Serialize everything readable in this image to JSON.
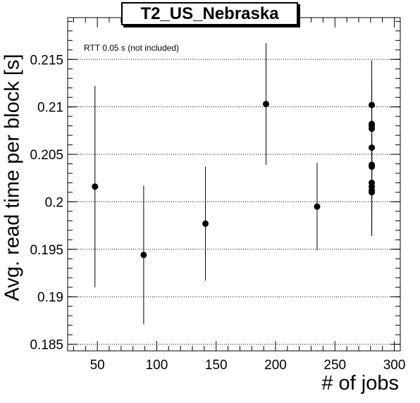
{
  "chart_data": {
    "type": "scatter",
    "title": "T2_US_Nebraska",
    "xlabel": "# of jobs",
    "ylabel": "Avg. read time per block [s]",
    "annotation": "RTT 0.05 s (not included)",
    "xlim": [
      25,
      305
    ],
    "ylim": [
      0.1843,
      0.2194
    ],
    "x_ticks": [
      50,
      100,
      150,
      200,
      250,
      300
    ],
    "x_tick_labels": [
      "50",
      "100",
      "150",
      "200",
      "250",
      "300"
    ],
    "y_ticks": [
      0.185,
      0.19,
      0.195,
      0.2,
      0.205,
      0.21,
      0.215
    ],
    "y_tick_labels": [
      "0.185",
      "0.19",
      "0.195",
      "0.2",
      "0.205",
      "0.21",
      "0.215"
    ],
    "y_grid": true,
    "points": [
      {
        "x": 48,
        "y": 0.2016,
        "err": 0.0106
      },
      {
        "x": 89,
        "y": 0.1944,
        "err": 0.0073
      },
      {
        "x": 141,
        "y": 0.1977,
        "err": 0.006
      },
      {
        "x": 192,
        "y": 0.2103,
        "err": 0.0064
      },
      {
        "x": 235,
        "y": 0.1995,
        "err": 0.0046
      },
      {
        "x": 281,
        "y": 0.2102,
        "err": 0.0047
      },
      {
        "x": 281,
        "y": 0.2082,
        "err": 0.0046
      },
      {
        "x": 281,
        "y": 0.208,
        "err": 0.0046
      },
      {
        "x": 281,
        "y": 0.2077,
        "err": 0.0046
      },
      {
        "x": 281,
        "y": 0.2057,
        "err": 0.0046
      },
      {
        "x": 281,
        "y": 0.2039,
        "err": 0.0046
      },
      {
        "x": 281,
        "y": 0.2037,
        "err": 0.0046
      },
      {
        "x": 281,
        "y": 0.202,
        "err": 0.0046
      },
      {
        "x": 281,
        "y": 0.2016,
        "err": 0.0046
      },
      {
        "x": 281,
        "y": 0.2012,
        "err": 0.0046
      },
      {
        "x": 281,
        "y": 0.201,
        "err": 0.0046
      }
    ]
  }
}
